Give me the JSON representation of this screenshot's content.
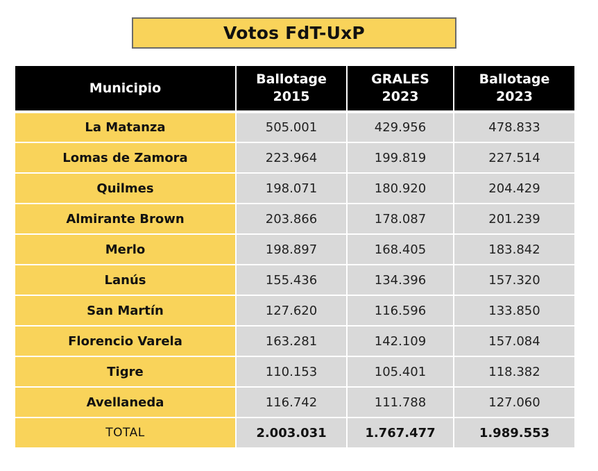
{
  "colors": {
    "accent_yellow": "#f9d35a",
    "header_black": "#000000",
    "value_gray": "#d9d9d9"
  },
  "chart_data": {
    "type": "table",
    "title": "Votos FdT-UxP",
    "headers": [
      {
        "line1": "Municipio",
        "line2": ""
      },
      {
        "line1": "Ballotage",
        "line2": "2015"
      },
      {
        "line1": "GRALES",
        "line2": "2023"
      },
      {
        "line1": "Ballotage",
        "line2": "2023"
      }
    ],
    "rows": [
      {
        "municipio": "La Matanza",
        "ballotage_2015": "505.001",
        "grales_2023": "429.956",
        "ballotage_2023": "478.833"
      },
      {
        "municipio": "Lomas de Zamora",
        "ballotage_2015": "223.964",
        "grales_2023": "199.819",
        "ballotage_2023": "227.514"
      },
      {
        "municipio": "Quilmes",
        "ballotage_2015": "198.071",
        "grales_2023": "180.920",
        "ballotage_2023": "204.429"
      },
      {
        "municipio": "Almirante Brown",
        "ballotage_2015": "203.866",
        "grales_2023": "178.087",
        "ballotage_2023": "201.239"
      },
      {
        "municipio": "Merlo",
        "ballotage_2015": "198.897",
        "grales_2023": "168.405",
        "ballotage_2023": "183.842"
      },
      {
        "municipio": "Lanús",
        "ballotage_2015": "155.436",
        "grales_2023": "134.396",
        "ballotage_2023": "157.320"
      },
      {
        "municipio": "San Martín",
        "ballotage_2015": "127.620",
        "grales_2023": "116.596",
        "ballotage_2023": "133.850"
      },
      {
        "municipio": "Florencio Varela",
        "ballotage_2015": "163.281",
        "grales_2023": "142.109",
        "ballotage_2023": "157.084"
      },
      {
        "municipio": "Tigre",
        "ballotage_2015": "110.153",
        "grales_2023": "105.401",
        "ballotage_2023": "118.382"
      },
      {
        "municipio": "Avellaneda",
        "ballotage_2015": "116.742",
        "grales_2023": "111.788",
        "ballotage_2023": "127.060"
      }
    ],
    "total": {
      "label": "TOTAL",
      "ballotage_2015": "2.003.031",
      "grales_2023": "1.767.477",
      "ballotage_2023": "1.989.553"
    }
  }
}
